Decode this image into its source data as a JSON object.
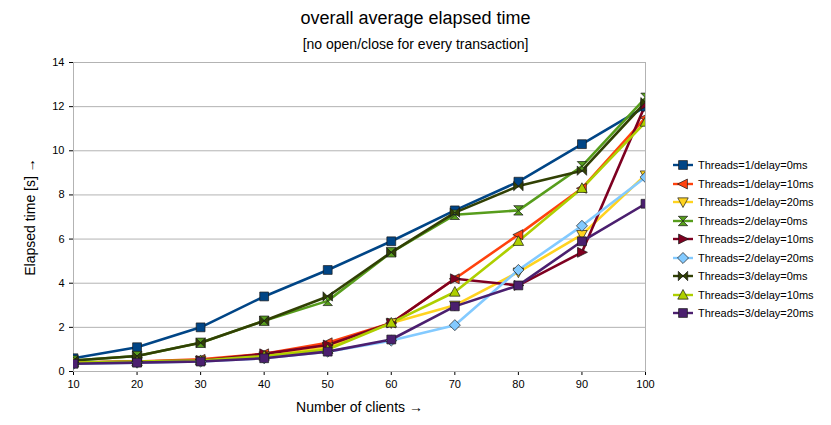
{
  "chart_data": {
    "type": "line",
    "title": "overall average elapsed time",
    "subtitle": "[no open/close for every transaction]",
    "x_label": "Number of clients",
    "y_label": "Elapsed time [s]",
    "x": [
      10,
      20,
      30,
      40,
      50,
      60,
      70,
      80,
      90,
      100
    ],
    "xlim": [
      10,
      100
    ],
    "xticks": [
      10,
      20,
      30,
      40,
      50,
      60,
      70,
      80,
      90,
      100
    ],
    "ylim": [
      0,
      14
    ],
    "yticks": [
      0,
      2,
      4,
      6,
      8,
      10,
      12,
      14
    ],
    "grid": true,
    "legend": "right",
    "series": [
      {
        "name": "Threads=1/delay=0ms",
        "color": "#004586",
        "marker": "square",
        "values": [
          0.6,
          1.1,
          2.0,
          3.4,
          4.6,
          5.9,
          7.3,
          8.6,
          10.3,
          12.0
        ]
      },
      {
        "name": "Threads=1/delay=10ms",
        "color": "#ff420e",
        "marker": "triangle-left",
        "values": [
          0.4,
          0.45,
          0.55,
          0.8,
          1.3,
          2.2,
          4.2,
          6.2,
          8.3,
          11.5
        ]
      },
      {
        "name": "Threads=1/delay=20ms",
        "color": "#ffd320",
        "marker": "triangle-down",
        "values": [
          0.4,
          0.45,
          0.5,
          0.7,
          1.1,
          2.2,
          3.0,
          4.5,
          6.2,
          8.9
        ]
      },
      {
        "name": "Threads=2/delay=0ms",
        "color": "#579d1c",
        "marker": "hourglass",
        "values": [
          0.5,
          0.7,
          1.3,
          2.3,
          3.2,
          5.4,
          7.1,
          7.3,
          9.3,
          12.4
        ]
      },
      {
        "name": "Threads=2/delay=10ms",
        "color": "#7e0021",
        "marker": "triangle-right",
        "values": [
          0.4,
          0.45,
          0.5,
          0.8,
          1.2,
          2.2,
          4.2,
          3.9,
          5.4,
          12.1
        ]
      },
      {
        "name": "Threads=2/delay=20ms",
        "color": "#83caff",
        "marker": "diamond",
        "values": [
          0.35,
          0.4,
          0.45,
          0.6,
          0.9,
          1.4,
          2.1,
          4.6,
          6.6,
          8.8
        ]
      },
      {
        "name": "Threads=3/delay=0ms",
        "color": "#314004",
        "marker": "bowtie",
        "values": [
          0.5,
          0.7,
          1.3,
          2.3,
          3.4,
          5.4,
          7.2,
          8.4,
          9.1,
          12.2
        ]
      },
      {
        "name": "Threads=3/delay=10ms",
        "color": "#aecf00",
        "marker": "triangle-up",
        "values": [
          0.4,
          0.45,
          0.5,
          0.7,
          1.0,
          2.2,
          3.6,
          5.9,
          8.3,
          11.3
        ]
      },
      {
        "name": "Threads=3/delay=20ms",
        "color": "#4b1f6f",
        "marker": "square",
        "values": [
          0.35,
          0.4,
          0.45,
          0.6,
          0.9,
          1.45,
          2.95,
          3.9,
          5.9,
          7.6
        ]
      }
    ]
  }
}
